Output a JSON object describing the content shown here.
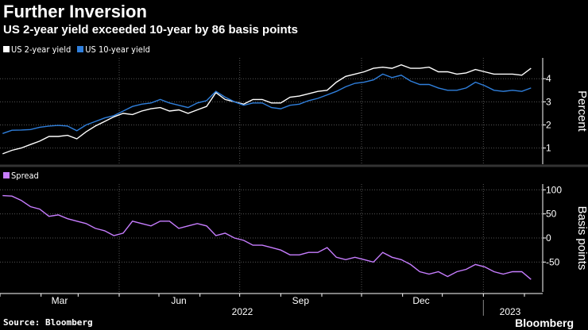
{
  "title": "Further Inversion",
  "subtitle": "US 2-year yield exceeded 10-year by 86 basis points",
  "source": "Source: Bloomberg",
  "brand": "Bloomberg",
  "chart_data": [
    {
      "type": "line",
      "ylabel": "Percent",
      "yticks": [
        1,
        2,
        3,
        4
      ],
      "ylim": [
        0.3,
        4.9
      ],
      "grid": true,
      "legend_placement": "top-left",
      "x": [
        "2022-01-03",
        "2022-01-10",
        "2022-01-17",
        "2022-01-24",
        "2022-01-31",
        "2022-02-07",
        "2022-02-14",
        "2022-02-21",
        "2022-02-28",
        "2022-03-07",
        "2022-03-14",
        "2022-03-21",
        "2022-03-28",
        "2022-04-04",
        "2022-04-11",
        "2022-04-18",
        "2022-04-25",
        "2022-05-02",
        "2022-05-09",
        "2022-05-16",
        "2022-05-23",
        "2022-05-30",
        "2022-06-06",
        "2022-06-13",
        "2022-06-20",
        "2022-06-27",
        "2022-07-04",
        "2022-07-11",
        "2022-07-18",
        "2022-07-25",
        "2022-08-01",
        "2022-08-08",
        "2022-08-15",
        "2022-08-22",
        "2022-08-29",
        "2022-09-05",
        "2022-09-12",
        "2022-09-19",
        "2022-09-26",
        "2022-10-03",
        "2022-10-10",
        "2022-10-17",
        "2022-10-24",
        "2022-10-31",
        "2022-11-07",
        "2022-11-14",
        "2022-11-21",
        "2022-11-28",
        "2022-12-05",
        "2022-12-12",
        "2022-12-19",
        "2022-12-26",
        "2023-01-02",
        "2023-01-09",
        "2023-01-16",
        "2023-01-23",
        "2023-01-30",
        "2023-02-06"
      ],
      "series": [
        {
          "name": "US 2-year yield",
          "color": "#ffffff",
          "values": [
            0.75,
            0.9,
            1.0,
            1.15,
            1.3,
            1.5,
            1.5,
            1.55,
            1.4,
            1.7,
            1.95,
            2.15,
            2.35,
            2.5,
            2.45,
            2.6,
            2.7,
            2.75,
            2.6,
            2.65,
            2.5,
            2.65,
            2.8,
            3.4,
            3.1,
            3.0,
            2.9,
            3.1,
            3.1,
            2.95,
            2.95,
            3.2,
            3.25,
            3.35,
            3.45,
            3.5,
            3.85,
            4.1,
            4.2,
            4.3,
            4.45,
            4.5,
            4.45,
            4.6,
            4.45,
            4.45,
            4.5,
            4.3,
            4.3,
            4.2,
            4.25,
            4.4,
            4.3,
            4.2,
            4.2,
            4.2,
            4.15,
            4.45
          ]
        },
        {
          "name": "US 10-year yield",
          "color": "#2f7fdc",
          "values": [
            1.63,
            1.77,
            1.78,
            1.8,
            1.9,
            1.95,
            1.98,
            1.95,
            1.75,
            2.0,
            2.15,
            2.3,
            2.4,
            2.6,
            2.8,
            2.9,
            2.95,
            3.1,
            2.95,
            2.85,
            2.75,
            2.95,
            3.05,
            3.45,
            3.2,
            3.0,
            2.85,
            2.95,
            2.95,
            2.75,
            2.7,
            2.85,
            2.9,
            3.05,
            3.15,
            3.3,
            3.45,
            3.65,
            3.8,
            3.85,
            3.95,
            4.2,
            4.05,
            4.15,
            3.9,
            3.75,
            3.75,
            3.6,
            3.5,
            3.5,
            3.6,
            3.85,
            3.7,
            3.5,
            3.45,
            3.5,
            3.45,
            3.6
          ]
        }
      ]
    },
    {
      "type": "line",
      "ylabel": "Basis points",
      "yticks": [
        -50,
        0,
        50,
        100
      ],
      "ylim": [
        -112,
        112
      ],
      "grid": true,
      "legend_placement": "top-left",
      "xtick_labels": [
        "Mar",
        "Jun",
        "Sep",
        "Dec"
      ],
      "year_labels": [
        "2022",
        "2023"
      ],
      "series": [
        {
          "name": "Spread",
          "color": "#c77dff",
          "values": [
            88,
            87,
            78,
            65,
            60,
            45,
            48,
            40,
            35,
            30,
            20,
            15,
            5,
            10,
            35,
            30,
            25,
            35,
            35,
            20,
            25,
            30,
            25,
            5,
            10,
            0,
            -5,
            -15,
            -15,
            -20,
            -25,
            -35,
            -35,
            -30,
            -30,
            -20,
            -40,
            -45,
            -40,
            -45,
            -50,
            -30,
            -40,
            -45,
            -55,
            -70,
            -75,
            -70,
            -80,
            -70,
            -65,
            -55,
            -60,
            -70,
            -75,
            -70,
            -70,
            -86
          ]
        }
      ]
    }
  ]
}
